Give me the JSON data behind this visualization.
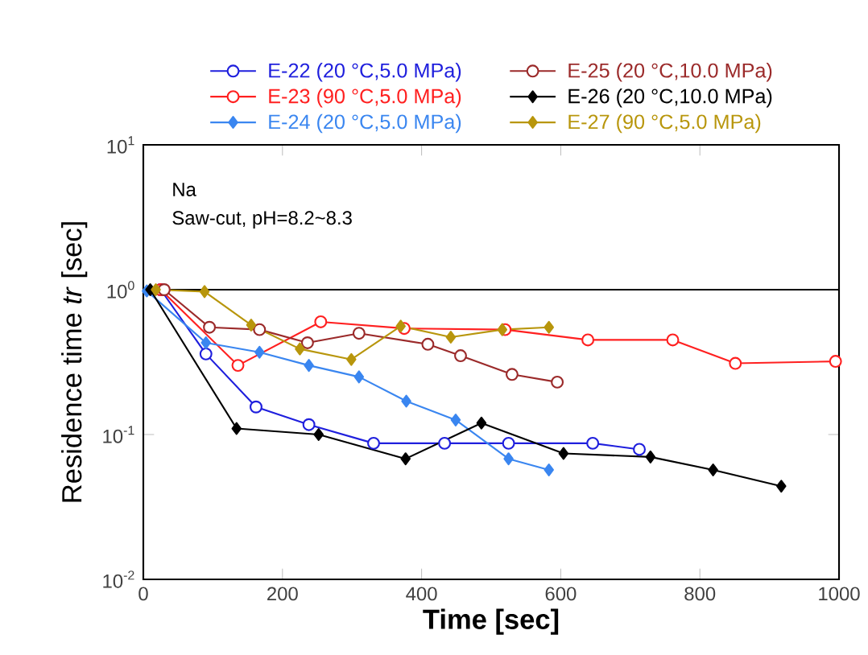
{
  "chart_data": {
    "type": "line",
    "xlabel": "Time [sec]",
    "ylabel": "Residence time *tr* [sec]",
    "log": "y",
    "xlim": [
      0,
      1000
    ],
    "ylim": [
      0.01,
      10
    ],
    "xticks": [
      0,
      200,
      400,
      600,
      800,
      1000
    ],
    "yticks": [
      {
        "value": 0.01,
        "label": "10$^{-2}$"
      },
      {
        "value": 0.1,
        "label": "10$^{-1}$"
      },
      {
        "value": 1,
        "label": "10$^{0}$"
      },
      {
        "value": 10,
        "label": "10$^{1}$"
      }
    ],
    "legend": "top",
    "grid": false,
    "ref_lines": [
      {
        "axis": "y",
        "value": 1,
        "color": "#000000"
      }
    ],
    "annotations": [
      "Na",
      "Saw-cut, pH=8.2~8.3"
    ],
    "series": [
      {
        "name": "E-22 (20 °C,5.0 MPa)",
        "color": "#1f1fdd",
        "marker": "circle",
        "x": [
          25,
          90,
          162,
          238,
          331,
          433,
          525,
          646,
          713
        ],
        "values": [
          1.0,
          0.36,
          0.155,
          0.117,
          0.087,
          0.087,
          0.087,
          0.087,
          0.079
        ]
      },
      {
        "name": "E-23 (90 °C,5.0 MPa)",
        "color": "#ff2020",
        "marker": "circle",
        "x": [
          25,
          136,
          255,
          375,
          520,
          639,
          761,
          851,
          995
        ],
        "values": [
          1.0,
          0.3,
          0.6,
          0.54,
          0.53,
          0.45,
          0.45,
          0.31,
          0.32
        ]
      },
      {
        "name": "E-24 (20 °C,5.0 MPa)",
        "color": "#3a86f0",
        "marker": "diamond",
        "x": [
          5,
          90,
          167,
          238,
          310,
          378,
          449,
          525,
          583
        ],
        "values": [
          0.98,
          0.43,
          0.37,
          0.3,
          0.25,
          0.17,
          0.126,
          0.068,
          0.057
        ]
      },
      {
        "name": "E-25 (20 °C,10.0 MPa)",
        "color": "#9b2a2a",
        "marker": "circle",
        "x": [
          30,
          95,
          167,
          236,
          310,
          409,
          456,
          530,
          595
        ],
        "values": [
          1.0,
          0.55,
          0.53,
          0.43,
          0.5,
          0.42,
          0.35,
          0.26,
          0.23
        ]
      },
      {
        "name": "E-26 (20 °C,10.0 MPa)",
        "color": "#000000",
        "marker": "diamond",
        "x": [
          10,
          134,
          252,
          377,
          486,
          604,
          729,
          819,
          917
        ],
        "values": [
          1.0,
          0.11,
          0.1,
          0.068,
          0.12,
          0.074,
          0.07,
          0.057,
          0.044
        ]
      },
      {
        "name": "E-27 (90 °C,5.0 MPa)",
        "color": "#b8960c",
        "marker": "diamond",
        "x": [
          18,
          88,
          155,
          225,
          299,
          370,
          442,
          516,
          583
        ],
        "values": [
          1.0,
          0.97,
          0.57,
          0.39,
          0.33,
          0.56,
          0.47,
          0.53,
          0.55
        ]
      }
    ]
  }
}
